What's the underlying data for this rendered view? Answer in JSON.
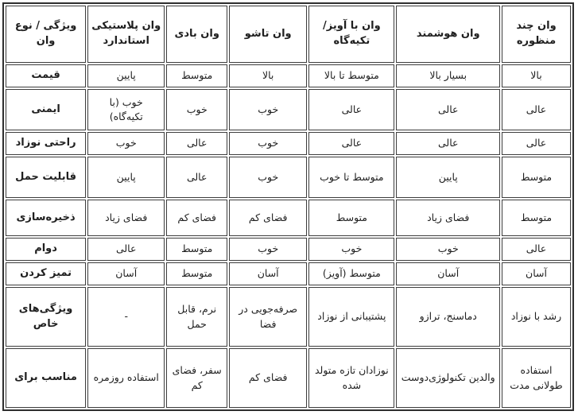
{
  "table": {
    "columns": [
      "ویژگی / نوع وان",
      "وان پلاستیکی استاندارد",
      "وان بادی",
      "وان تاشو",
      "وان با آویز/تکیه‌گاه",
      "وان هوشمند",
      "وان چند منظوره"
    ],
    "rows": [
      {
        "label": "قیمت",
        "cells": [
          "پایین",
          "متوسط",
          "بالا",
          "متوسط تا بالا",
          "بسیار بالا",
          "بالا"
        ]
      },
      {
        "label": "ایمنی",
        "cells": [
          "خوب (با تکیه‌گاه)",
          "خوب",
          "خوب",
          "عالی",
          "عالی",
          "عالی"
        ]
      },
      {
        "label": "راحتی نوزاد",
        "cells": [
          "خوب",
          "عالی",
          "خوب",
          "عالی",
          "عالی",
          "عالی"
        ]
      },
      {
        "label": "قابلیت حمل",
        "cells": [
          "پایین",
          "عالی",
          "خوب",
          "متوسط تا خوب",
          "پایین",
          "متوسط"
        ]
      },
      {
        "label": "ذخیره‌سازی",
        "cells": [
          "فضای زیاد",
          "فضای کم",
          "فضای کم",
          "متوسط",
          "فضای زیاد",
          "متوسط"
        ]
      },
      {
        "label": "دوام",
        "cells": [
          "عالی",
          "متوسط",
          "خوب",
          "خوب",
          "خوب",
          "عالی"
        ]
      },
      {
        "label": "تمیز کردن",
        "cells": [
          "آسان",
          "متوسط",
          "آسان",
          "متوسط (آویز)",
          "آسان",
          "آسان"
        ]
      },
      {
        "label": "ویژگی‌های خاص",
        "cells": [
          "-",
          "نرم، قابل حمل",
          "صرفه‌جویی در فضا",
          "پشتیبانی از نوزاد",
          "دماسنج، ترازو",
          "رشد با نوزاد"
        ]
      },
      {
        "label": "مناسب برای",
        "cells": [
          "استفاده روزمره",
          "سفر، فضای کم",
          "فضای کم",
          "نوزادان تازه متولد شده",
          "والدین تکنولوژی‌دوست",
          "استفاده طولانی مدت"
        ]
      }
    ]
  }
}
